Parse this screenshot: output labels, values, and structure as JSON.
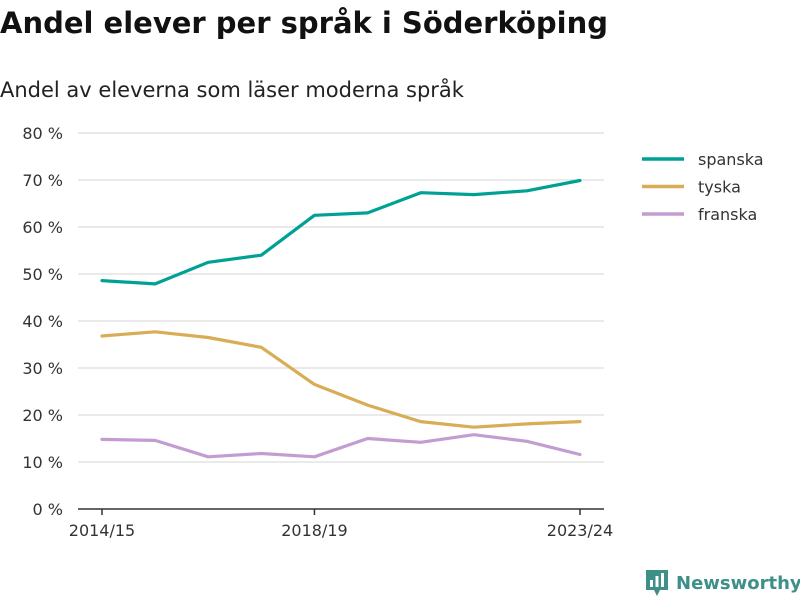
{
  "header": {
    "title": "Andel elever per språk i Söderköping",
    "subtitle": "Andel av eleverna som läser moderna språk"
  },
  "brand": {
    "name": "Newsworthy"
  },
  "colors": {
    "spanska": "#00a195",
    "tyska": "#d9ac56",
    "franska": "#c39cd1",
    "grid": "#dddddd",
    "axis": "#333333",
    "brand": "#3d8f87"
  },
  "chart_data": {
    "type": "line",
    "x": [
      "2014/15",
      "2015/16",
      "2016/17",
      "2017/18",
      "2018/19",
      "2019/20",
      "2020/21",
      "2021/22",
      "2022/23",
      "2023/24"
    ],
    "x_tick_labels": [
      "2014/15",
      "2018/19",
      "2023/24"
    ],
    "y_tick_labels": [
      "0 %",
      "10 %",
      "20 %",
      "30 %",
      "40 %",
      "50 %",
      "60 %",
      "70 %",
      "80 %"
    ],
    "ylim": [
      0,
      80
    ],
    "grid": true,
    "legend_position": "top-right",
    "series": [
      {
        "name": "spanska",
        "values": [
          48.6,
          47.9,
          52.5,
          54.0,
          62.5,
          63.0,
          67.3,
          66.9,
          67.7,
          69.9
        ]
      },
      {
        "name": "tyska",
        "values": [
          36.8,
          37.7,
          36.5,
          34.4,
          26.5,
          22.1,
          18.6,
          17.4,
          18.1,
          18.6
        ]
      },
      {
        "name": "franska",
        "values": [
          14.8,
          14.6,
          11.1,
          11.8,
          11.1,
          15.0,
          14.2,
          15.8,
          14.4,
          11.6
        ]
      }
    ]
  }
}
